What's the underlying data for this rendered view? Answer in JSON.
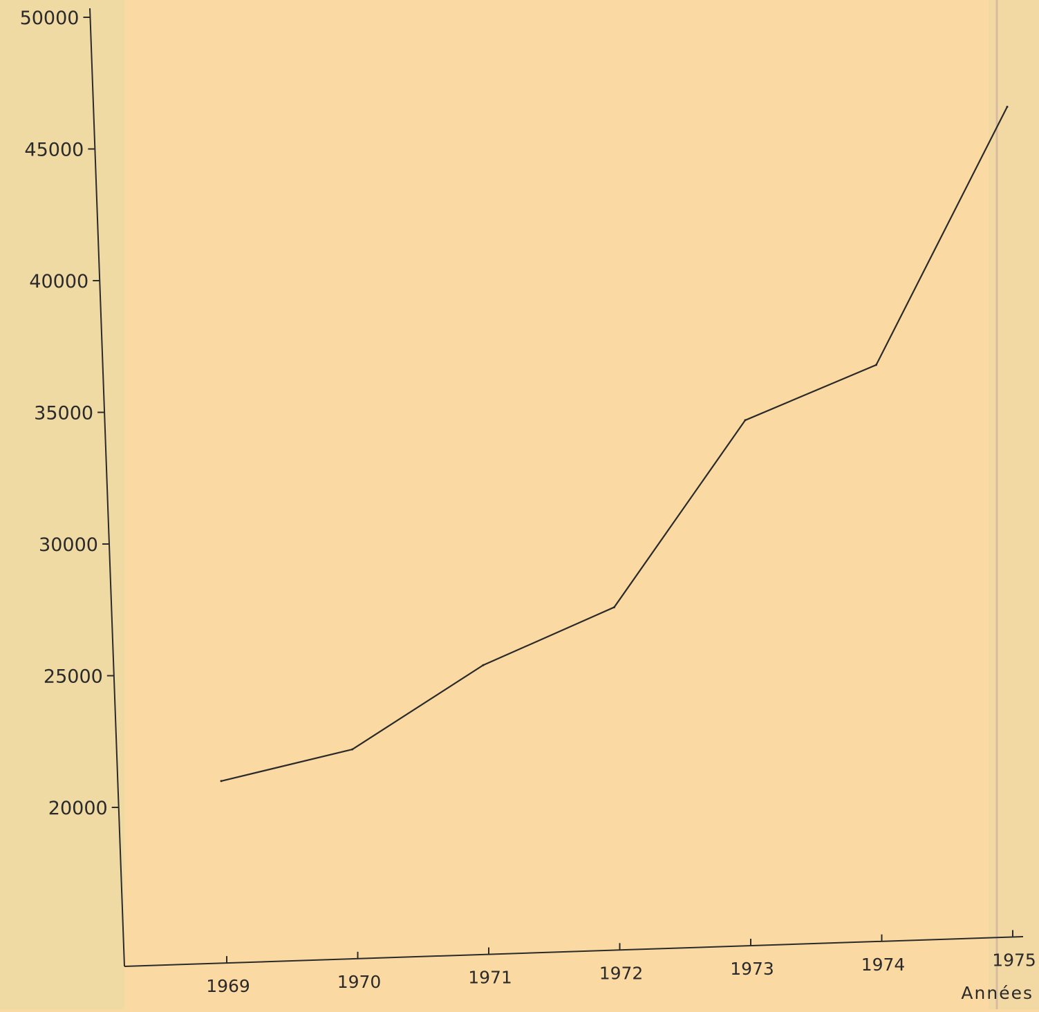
{
  "chart_data": {
    "type": "line",
    "title": "",
    "xlabel": "Années",
    "ylabel": "",
    "x_ticks": [
      "1969",
      "1970",
      "1971",
      "1972",
      "1973",
      "1974",
      "1975"
    ],
    "y_ticks": [
      "50000",
      "45000",
      "40000",
      "35000",
      "30000",
      "25000",
      "20000"
    ],
    "ylim": [
      16000,
      50000
    ],
    "xlim": [
      1968.2,
      1975
    ],
    "grid": false,
    "series": [
      {
        "x": [
          1969,
          1970,
          1971,
          1972,
          1973,
          1974,
          1975
        ],
        "y": [
          21000,
          22200,
          25400,
          27600,
          34700,
          36800,
          46600
        ]
      }
    ],
    "colors": {
      "line": "#2a2a2a",
      "background": "#fbd9a2"
    }
  }
}
